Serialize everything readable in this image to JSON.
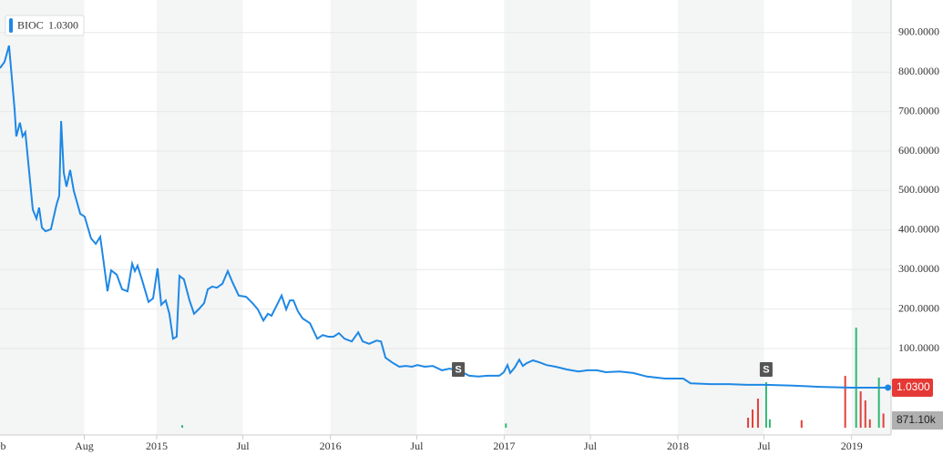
{
  "chart_data": {
    "type": "line",
    "series": [
      {
        "name": "BIOC",
        "color": "#1e88e5",
        "x": [
          2014.098,
          2014.124,
          2014.15,
          2014.182,
          2014.192,
          2014.213,
          2014.228,
          2014.244,
          2014.287,
          2014.308,
          2014.323,
          2014.339,
          2014.36,
          2014.391,
          2014.423,
          2014.439,
          2014.45,
          2014.465,
          2014.481,
          2014.502,
          2014.523,
          2014.56,
          2014.585,
          2014.622,
          2014.649,
          2014.675,
          2014.696,
          2014.717,
          2014.738,
          2014.77,
          2014.801,
          2014.832,
          2014.859,
          2014.874,
          2014.89,
          2014.916,
          2014.953,
          2014.979,
          2015.005,
          2015.026,
          2015.052,
          2015.073,
          2015.094,
          2015.115,
          2015.131,
          2015.157,
          2015.189,
          2015.215,
          2015.241,
          2015.273,
          2015.294,
          2015.32,
          2015.346,
          2015.378,
          2015.409,
          2015.436,
          2015.472,
          2015.514,
          2015.551,
          2015.582,
          2015.614,
          2015.64,
          2015.661,
          2015.693,
          2015.719,
          2015.745,
          2015.766,
          2015.787,
          2015.813,
          2015.84,
          2015.882,
          2015.924,
          2015.956,
          2015.987,
          2016.018,
          2016.049,
          2016.081,
          2016.123,
          2016.16,
          2016.186,
          2016.223,
          2016.265,
          2016.291,
          2016.317,
          2016.354,
          2016.396,
          2016.433,
          2016.469,
          2016.501,
          2016.543,
          2016.589,
          2016.642,
          2016.684,
          2016.736,
          2016.799,
          2016.852,
          2016.904,
          2016.972,
          2016.998,
          2017.019,
          2017.035,
          2017.061,
          2017.087,
          2017.108,
          2017.129,
          2017.166,
          2017.203,
          2017.244,
          2017.297,
          2017.36,
          2017.428,
          2017.48,
          2017.533,
          2017.585,
          2017.664,
          2017.743,
          2017.822,
          2017.926,
          2018.031,
          2018.073,
          2018.188,
          2018.293,
          2018.398,
          2018.508,
          2018.66,
          2018.817,
          2018.999,
          2019.209
        ],
        "values": [
          810,
          826,
          867,
          706,
          637,
          672,
          637,
          648,
          452,
          429,
          457,
          406,
          397,
          402,
          464,
          487,
          676,
          545,
          510,
          552,
          499,
          441,
          434,
          379,
          365,
          383,
          315,
          245,
          298,
          287,
          250,
          245,
          315,
          296,
          310,
          273,
          218,
          227,
          303,
          211,
          222,
          188,
          125,
          130,
          284,
          275,
          222,
          188,
          199,
          215,
          250,
          257,
          254,
          264,
          296,
          268,
          234,
          231,
          215,
          199,
          171,
          188,
          183,
          211,
          234,
          199,
          222,
          222,
          194,
          176,
          164,
          125,
          134,
          130,
          130,
          139,
          125,
          118,
          141,
          118,
          112,
          120,
          118,
          77,
          65,
          54,
          56,
          54,
          58,
          54,
          56,
          45,
          49,
          45,
          31,
          29,
          31,
          31,
          40,
          58,
          38,
          52,
          72,
          56,
          63,
          70,
          65,
          58,
          54,
          47,
          42,
          45,
          45,
          40,
          42,
          38,
          29,
          24,
          24,
          12,
          10,
          10,
          8,
          8,
          6,
          3,
          1,
          1.03
        ]
      }
    ],
    "current": {
      "value": 1.03,
      "label": "1.0300"
    },
    "xlim": [
      2014.098,
      2019.227
    ],
    "ylim": [
      0,
      982.5
    ],
    "xticks": [
      {
        "value": 2014.085,
        "label": "Feb"
      },
      {
        "value": 2014.583,
        "label": "Aug"
      },
      2015,
      {
        "value": 2015.496,
        "label": "Jul"
      },
      2016,
      {
        "value": 2016.497,
        "label": "Jul"
      },
      2017,
      {
        "value": 2017.496,
        "label": "Jul"
      },
      2018,
      {
        "value": 2018.496,
        "label": "Jul"
      },
      2019
    ],
    "yticks": [
      {
        "value": 100,
        "label": "100.0000"
      },
      {
        "value": 200,
        "label": "200.0000"
      },
      {
        "value": 300,
        "label": "300.0000"
      },
      {
        "value": 400,
        "label": "400.0000"
      },
      {
        "value": 500,
        "label": "500.0000"
      },
      {
        "value": 600,
        "label": "600.0000"
      },
      {
        "value": 700,
        "label": "700.0000"
      },
      {
        "value": 800,
        "label": "800.0000"
      },
      {
        "value": 900,
        "label": "900.0000"
      }
    ],
    "grid": true,
    "splits": [
      {
        "x": 2016.736,
        "label": "S"
      },
      {
        "x": 2018.508,
        "label": "S"
      }
    ],
    "volume": {
      "ylim": [
        0,
        12000
      ],
      "x": [
        2015.147,
        2017.01,
        2018.404,
        2018.43,
        2018.461,
        2018.508,
        2018.529,
        2018.712,
        2018.963,
        2019.026,
        2019.052,
        2019.079,
        2019.105,
        2019.157,
        2019.183
      ],
      "values": [
        300,
        500,
        1200,
        2180,
        3490,
        5450,
        1000,
        900,
        6220,
        12000,
        4360,
        3270,
        1000,
        6000,
        1700
      ],
      "colors": [
        "#2eb872",
        "#2eb872",
        "#e0403a",
        "#e0403a",
        "#e0403a",
        "#2eb872",
        "#2eb872",
        "#e0403a",
        "#e0403a",
        "#2eb872",
        "#e0403a",
        "#e0403a",
        "#e0403a",
        "#2eb872",
        "#e0403a"
      ],
      "current": {
        "value": 871.1,
        "label": "871.10k"
      }
    }
  }
}
